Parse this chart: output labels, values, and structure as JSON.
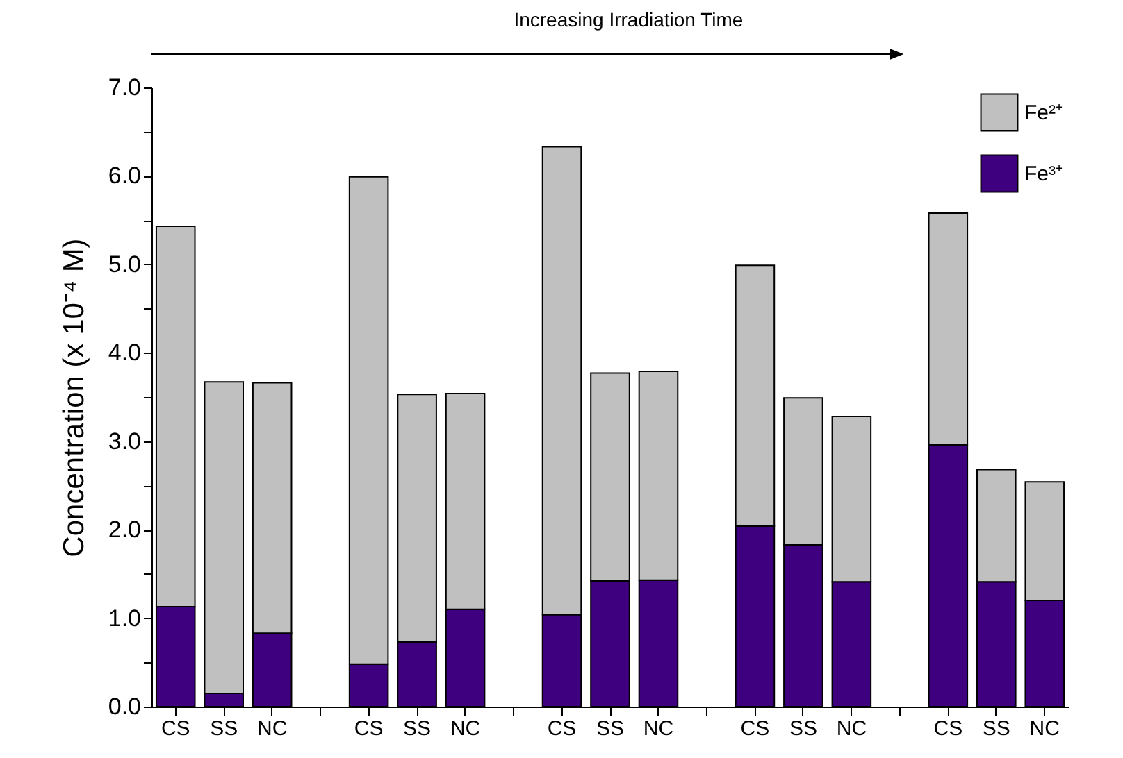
{
  "chart_data": {
    "type": "bar",
    "stacked": true,
    "ylabel": "Concentration (x 10⁻⁴ M)",
    "annotations": [
      "Increasing Irradiation Time"
    ],
    "categories": [
      "CS",
      "SS",
      "NC",
      null,
      "CS",
      "SS",
      "NC",
      null,
      "CS",
      "SS",
      "NC",
      null,
      "CS",
      "SS",
      "NC",
      null,
      "CS",
      "SS",
      "NC"
    ],
    "series": [
      {
        "name": "Fe³⁺",
        "color": "#3f007f",
        "values": [
          1.13,
          0.15,
          0.83,
          null,
          0.48,
          0.73,
          1.1,
          null,
          1.04,
          1.42,
          1.43,
          null,
          2.04,
          1.83,
          1.41,
          null,
          2.96,
          1.41,
          1.2
        ]
      },
      {
        "name": "Fe²⁺",
        "color": "#c0c0c0",
        "values": [
          4.3,
          3.52,
          2.83,
          null,
          5.51,
          2.8,
          2.44,
          null,
          5.29,
          2.35,
          2.36,
          null,
          2.95,
          1.66,
          1.87,
          null,
          2.62,
          1.27,
          1.34
        ]
      }
    ],
    "ylim": [
      0,
      7
    ],
    "yticks": [
      {
        "value": 0,
        "label": "0.0"
      },
      {
        "value": 0.5,
        "label": null
      },
      {
        "value": 1,
        "label": "1.0"
      },
      {
        "value": 1.5,
        "label": null
      },
      {
        "value": 2,
        "label": "2.0"
      },
      {
        "value": 2.5,
        "label": null
      },
      {
        "value": 3,
        "label": "3.0"
      },
      {
        "value": 3.5,
        "label": null
      },
      {
        "value": 4,
        "label": "4.0"
      },
      {
        "value": 4.5,
        "label": null
      },
      {
        "value": 5,
        "label": "5.0"
      },
      {
        "value": 5.5,
        "label": null
      },
      {
        "value": 6,
        "label": "6.0"
      },
      {
        "value": 6.5,
        "label": null
      },
      {
        "value": 7,
        "label": "7.0"
      }
    ],
    "legend": "top right",
    "grid": false
  }
}
